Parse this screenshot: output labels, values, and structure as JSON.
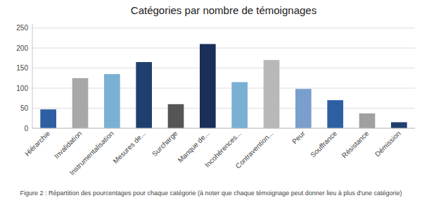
{
  "chart_data": {
    "type": "bar",
    "title": "Catégories par nombre de témoignages",
    "caption": "Figure 2 : Répartition des pourcentages pour chaque catégorie (à noter que chaque  témoignage peut donner lieu à plus d'une catégorie)",
    "categories": [
      "Hiérarchie",
      "Invalidation",
      "Instrumentalisation",
      "Mesures de...",
      "Surcharge",
      "Manque de...",
      "Incohérences...",
      "Contravention...",
      "Peur",
      "Souffrance",
      "Résistance",
      "Démission"
    ],
    "values": [
      47,
      125,
      135,
      165,
      60,
      210,
      115,
      170,
      98,
      70,
      37,
      15
    ],
    "colors": [
      "#2E5FA3",
      "#A8A8A8",
      "#7AB0D4",
      "#1F3F6E",
      "#555555",
      "#1A2F5A",
      "#7AB0D4",
      "#B8B8B8",
      "#7B9FCC",
      "#2E5FA3",
      "#A0A0A0",
      "#1F3F6E"
    ],
    "ylim": [
      0,
      260
    ],
    "yticks": [
      0,
      50,
      100,
      150,
      200,
      250
    ],
    "grid": true
  }
}
